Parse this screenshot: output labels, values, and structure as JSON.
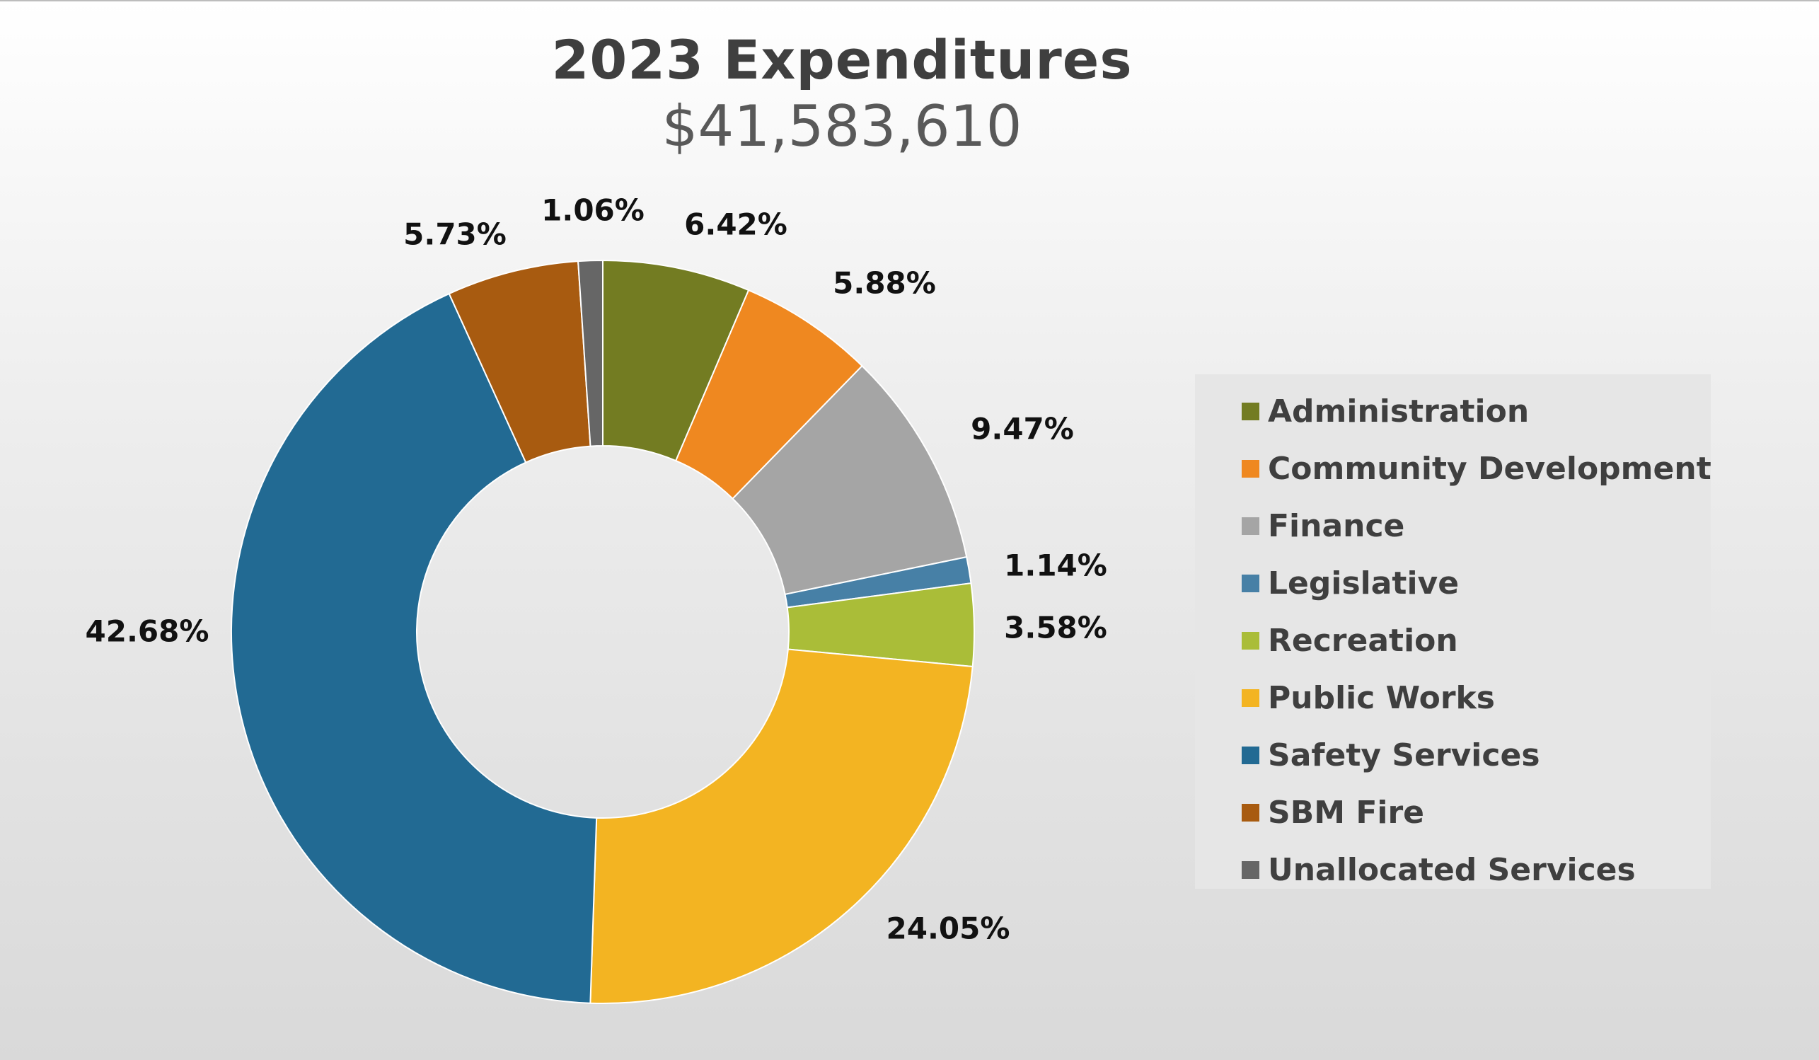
{
  "chart_data": {
    "type": "pie",
    "style": "donut",
    "title": "2023 Expenditures",
    "subtitle": "$41,583,610",
    "legend_placement": "right",
    "slices": [
      {
        "name": "Administration",
        "value": 6.42,
        "label": "6.42%",
        "color": "#737c22"
      },
      {
        "name": "Community Development",
        "value": 5.88,
        "label": "5.88%",
        "color": "#ef8820"
      },
      {
        "name": "Finance",
        "value": 9.47,
        "label": "9.47%",
        "color": "#a5a5a5"
      },
      {
        "name": "Legislative",
        "value": 1.14,
        "label": "1.14%",
        "color": "#4780a6"
      },
      {
        "name": "Recreation",
        "value": 3.58,
        "label": "3.58%",
        "color": "#aabd38"
      },
      {
        "name": "Public Works",
        "value": 24.05,
        "label": "24.05%",
        "color": "#f3b422"
      },
      {
        "name": "Safety Services",
        "value": 42.68,
        "label": "42.68%",
        "color": "#226a93"
      },
      {
        "name": "SBM Fire",
        "value": 5.73,
        "label": "5.73%",
        "color": "#a85b10"
      },
      {
        "name": "Unallocated Services",
        "value": 1.06,
        "label": "1.06%",
        "color": "#666666"
      }
    ]
  }
}
